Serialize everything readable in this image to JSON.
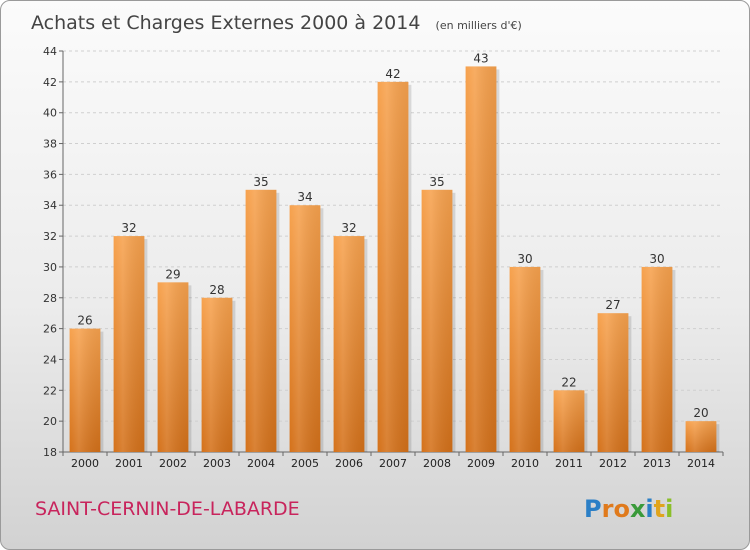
{
  "chart_data": {
    "type": "bar",
    "title": "Achats et Charges Externes 2000 à 2014",
    "subtitle": "(en milliers d'€)",
    "categories": [
      "2000",
      "2001",
      "2002",
      "2003",
      "2004",
      "2005",
      "2006",
      "2007",
      "2008",
      "2009",
      "2010",
      "2011",
      "2012",
      "2013",
      "2014"
    ],
    "values": [
      26,
      32,
      29,
      28,
      35,
      34,
      32,
      42,
      35,
      43,
      30,
      22,
      27,
      30,
      20
    ],
    "ylim": [
      18,
      44
    ],
    "yticks": [
      18,
      20,
      22,
      24,
      26,
      28,
      30,
      32,
      34,
      36,
      38,
      40,
      42,
      44
    ],
    "grid": true,
    "bar_color_top": "#f7a24e",
    "bar_color_bottom": "#d4711a"
  },
  "footer": {
    "place_name": "SAINT-CERNIN-DE-LABARDE",
    "logo_text": "Proxiti"
  }
}
